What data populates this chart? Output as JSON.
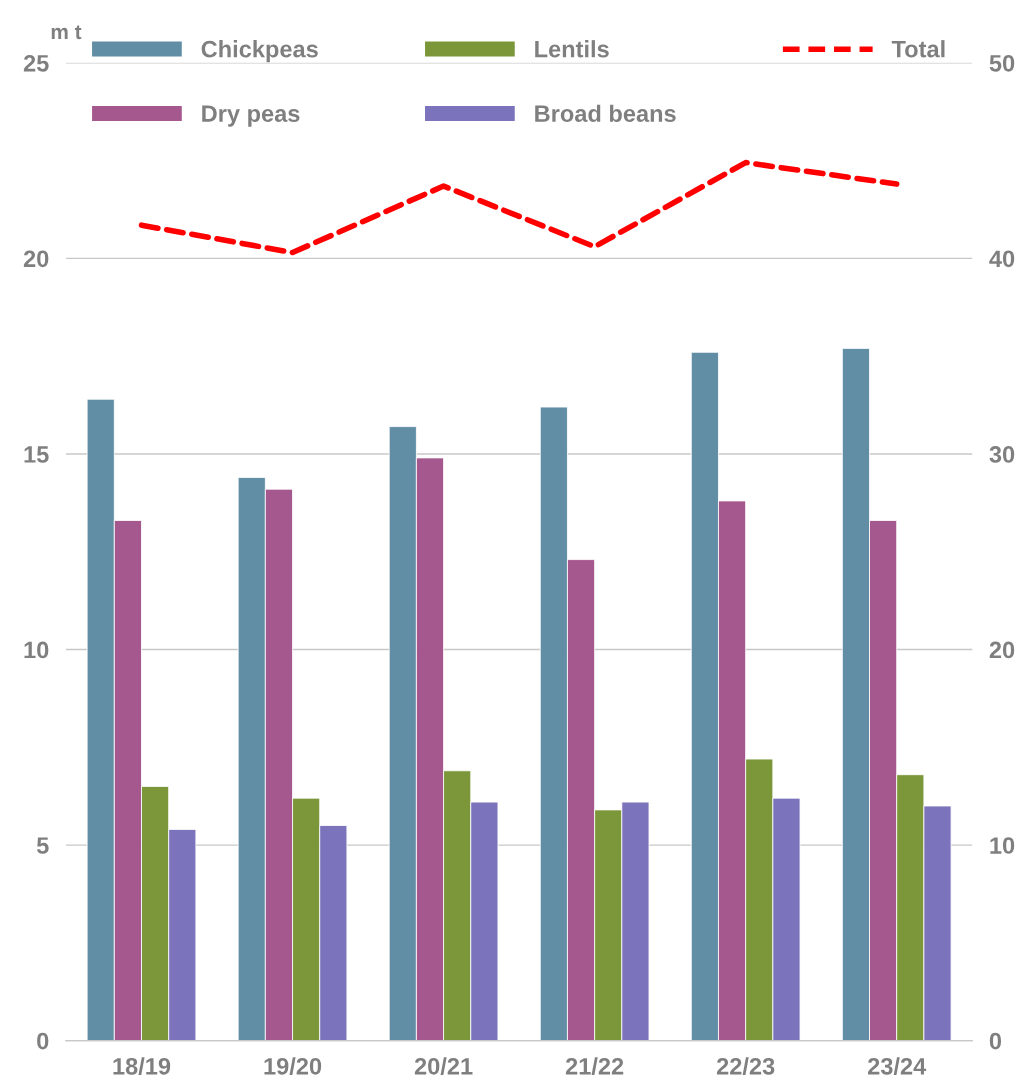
{
  "chart_data": {
    "type": "bar",
    "ylabel": "m t",
    "categories": [
      "18/19",
      "19/20",
      "20/21",
      "21/22",
      "22/23",
      "23/24"
    ],
    "series": [
      {
        "name": "Chickpeas",
        "color": "#618ea5",
        "values": [
          16.4,
          14.4,
          15.7,
          16.2,
          17.6,
          17.7
        ]
      },
      {
        "name": "Dry peas",
        "color": "#a5588e",
        "values": [
          13.3,
          14.1,
          14.9,
          12.3,
          13.8,
          13.3
        ]
      },
      {
        "name": "Lentils",
        "color": "#7b973a",
        "values": [
          6.5,
          6.2,
          6.9,
          5.9,
          7.2,
          6.8
        ]
      },
      {
        "name": "Broad beans",
        "color": "#7b73bb",
        "values": [
          5.4,
          5.5,
          6.1,
          6.1,
          6.2,
          6.0
        ]
      },
      {
        "name": "Total",
        "type": "line",
        "axis": "y2",
        "color": "#ff0000",
        "line_style": "dashed",
        "values": [
          41.7,
          40.3,
          43.7,
          40.6,
          44.9,
          43.8
        ]
      }
    ],
    "ylim": [
      0,
      25
    ],
    "yticks": [
      0,
      5,
      10,
      15,
      20,
      25
    ],
    "y2lim": [
      0,
      50
    ],
    "y2ticks": [
      0,
      10,
      20,
      30,
      40,
      50
    ],
    "grid": "y",
    "legend": "top",
    "marker": "none"
  }
}
